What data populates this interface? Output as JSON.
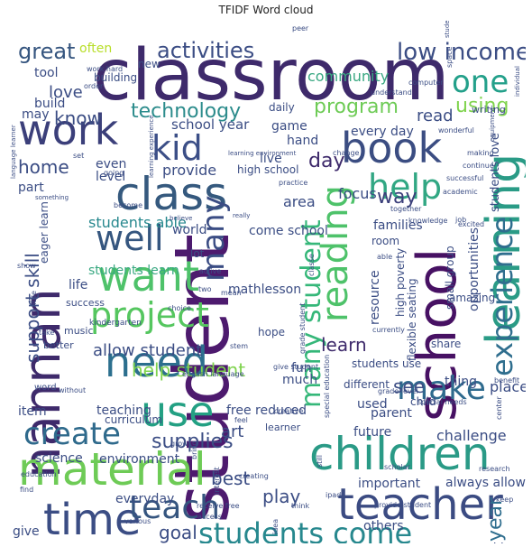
{
  "title": "TFIDF Word cloud",
  "words": [
    {
      "text": "classroom",
      "color": "#3e2a6b"
    },
    {
      "text": "student",
      "color": "#4d1a6e"
    },
    {
      "text": "school",
      "color": "#471163"
    },
    {
      "text": "learning",
      "color": "#2a9b86"
    },
    {
      "text": "work",
      "color": "#3b3f7a"
    },
    {
      "text": "nannan",
      "color": "#3e2a6b"
    },
    {
      "text": "class",
      "color": "#35597e"
    },
    {
      "text": "book",
      "color": "#3b4d82"
    },
    {
      "text": "kid",
      "color": "#3c4f87"
    },
    {
      "text": "want",
      "color": "#4ec26a"
    },
    {
      "text": "well",
      "color": "#35567f"
    },
    {
      "text": "project",
      "color": "#55c65f"
    },
    {
      "text": "need",
      "color": "#2c6f8e"
    },
    {
      "text": "use",
      "color": "#23a083"
    },
    {
      "text": "material",
      "color": "#6ecb56"
    },
    {
      "text": "time",
      "color": "#3b4d84"
    },
    {
      "text": "teach",
      "color": "#35557f"
    },
    {
      "text": "teacher",
      "color": "#3b4b82"
    },
    {
      "text": "children",
      "color": "#2a9a86"
    },
    {
      "text": "experience",
      "color": "#2f6e8e"
    },
    {
      "text": "students come",
      "color": "#27888e"
    },
    {
      "text": "create",
      "color": "#2f6a8c"
    },
    {
      "text": "make",
      "color": "#2f6b8e"
    },
    {
      "text": "many",
      "color": "#3b4d84"
    },
    {
      "text": "reading",
      "color": "#4ec26a"
    },
    {
      "text": "many student",
      "color": "#35b779"
    },
    {
      "text": "help",
      "color": "#31a783"
    },
    {
      "text": "one",
      "color": "#23a08a"
    },
    {
      "text": "activities",
      "color": "#3b4d84"
    },
    {
      "text": "low income",
      "color": "#3b4d84"
    },
    {
      "text": "great",
      "color": "#35557f"
    },
    {
      "text": "technology",
      "color": "#2c8c8c"
    },
    {
      "text": "using",
      "color": "#7ed34c"
    },
    {
      "text": "program",
      "color": "#6ecb56"
    },
    {
      "text": "day",
      "color": "#3e2a6b"
    },
    {
      "text": "way",
      "color": "#3b3f7a"
    },
    {
      "text": "help student",
      "color": "#7fd34e"
    },
    {
      "text": "supplies",
      "color": "#3b4d84"
    },
    {
      "text": "students need",
      "color": "#b8de29"
    },
    {
      "text": "learn",
      "color": "#3e2a6b"
    },
    {
      "text": "year",
      "color": "#2f6e8e"
    },
    {
      "text": "goal",
      "color": "#3b4d84"
    },
    {
      "text": "see",
      "color": "#3b4d84"
    },
    {
      "text": "best",
      "color": "#3b4d84"
    },
    {
      "text": "art",
      "color": "#3b4d84"
    },
    {
      "text": "play",
      "color": "#3b4d84"
    },
    {
      "text": "support skill",
      "color": "#3b4d84"
    },
    {
      "text": "allow student",
      "color": "#3b4d84"
    },
    {
      "text": "students able",
      "color": "#27888e"
    },
    {
      "text": "students learn",
      "color": "#3aa882"
    },
    {
      "text": "home",
      "color": "#3b4d84"
    },
    {
      "text": "know",
      "color": "#3b4d84"
    },
    {
      "text": "love",
      "color": "#3b4d84"
    },
    {
      "text": "community",
      "color": "#3aa882"
    },
    {
      "text": "school year",
      "color": "#3b4d84"
    },
    {
      "text": "every day",
      "color": "#3b4d84"
    },
    {
      "text": "provide",
      "color": "#3b4d84"
    },
    {
      "text": "read",
      "color": "#3b4d84"
    },
    {
      "text": "focus",
      "color": "#3b4d84"
    },
    {
      "text": "area",
      "color": "#3b4d84"
    },
    {
      "text": "families",
      "color": "#3b4d84"
    },
    {
      "text": "come school",
      "color": "#3b4d84"
    },
    {
      "text": "world",
      "color": "#3b4d84"
    },
    {
      "text": "resource",
      "color": "#3b4d84"
    },
    {
      "text": "often",
      "color": "#b8de29"
    },
    {
      "text": "tool",
      "color": "#3b4d84"
    },
    {
      "text": "build",
      "color": "#3b4d84"
    },
    {
      "text": "may",
      "color": "#3b4d84"
    },
    {
      "text": "even",
      "color": "#3b4d84"
    },
    {
      "text": "level",
      "color": "#3b4d84"
    },
    {
      "text": "part",
      "color": "#3b4d84"
    },
    {
      "text": "life",
      "color": "#3b4d84"
    },
    {
      "text": "mathlesson",
      "color": "#3b4d84"
    },
    {
      "text": "lot",
      "color": "#3b4d84"
    },
    {
      "text": "hand",
      "color": "#3b4d84"
    },
    {
      "text": "live",
      "color": "#3b4d84"
    },
    {
      "text": "game",
      "color": "#3b4d84"
    },
    {
      "text": "high school",
      "color": "#3b4d84"
    },
    {
      "text": "fun",
      "color": "#3b4d84"
    },
    {
      "text": "much",
      "color": "#3b4d84"
    },
    {
      "text": "thing",
      "color": "#3b4d84"
    },
    {
      "text": "used",
      "color": "#3b4d84"
    },
    {
      "text": "place",
      "color": "#3b4d84"
    },
    {
      "text": "parent",
      "color": "#3b4d84"
    },
    {
      "text": "future",
      "color": "#3b4d84"
    },
    {
      "text": "challenge",
      "color": "#3b4d84"
    },
    {
      "text": "always allow",
      "color": "#3b4d84"
    },
    {
      "text": "teaching",
      "color": "#3b4d84"
    },
    {
      "text": "item",
      "color": "#3b4d84"
    },
    {
      "text": "environment",
      "color": "#3b4d84"
    },
    {
      "text": "free reduced",
      "color": "#3b4d84"
    },
    {
      "text": "science",
      "color": "#3b4d84"
    },
    {
      "text": "everyday",
      "color": "#3b4d84"
    },
    {
      "text": "give",
      "color": "#3b4d84"
    },
    {
      "text": "others",
      "color": "#3b4d84"
    },
    {
      "text": "working",
      "color": "#3b4d84"
    },
    {
      "text": "important",
      "color": "#3b4d84"
    },
    {
      "text": "word",
      "color": "#3b4d84"
    },
    {
      "text": "curriculum",
      "color": "#3b4d84"
    },
    {
      "text": "new",
      "color": "#3b4d84"
    },
    {
      "text": "building",
      "color": "#3b4d84"
    },
    {
      "text": "daily",
      "color": "#3b4d84"
    },
    {
      "text": "eager learn",
      "color": "#3b4d84"
    },
    {
      "text": "room",
      "color": "#3b4d84"
    },
    {
      "text": "success",
      "color": "#3b4d84"
    },
    {
      "text": "music",
      "color": "#3b4d84"
    },
    {
      "text": "hope",
      "color": "#3b4d84"
    },
    {
      "text": "share",
      "color": "#3b4d84"
    },
    {
      "text": "students use",
      "color": "#3b4d84"
    },
    {
      "text": "opportunities",
      "color": "#3b4d84"
    },
    {
      "text": "students love",
      "color": "#3b4d84"
    },
    {
      "text": "small group",
      "color": "#3b4d84"
    },
    {
      "text": "high poverty",
      "color": "#3b4d84"
    },
    {
      "text": "flexible seating",
      "color": "#3b4d84"
    },
    {
      "text": "amazing",
      "color": "#3b4d84"
    },
    {
      "text": "learner",
      "color": "#3b4d84"
    },
    {
      "text": "better",
      "color": "#3b4d84"
    },
    {
      "text": "kindergarten",
      "color": "#3b4d84"
    },
    {
      "text": "different",
      "color": "#3b4d84"
    },
    {
      "text": "child",
      "color": "#3b4d84"
    },
    {
      "text": "writing",
      "color": "#3b4d84"
    },
    {
      "text": "peer",
      "color": "#3b4d84"
    },
    {
      "text": "students receive",
      "color": "#3b4d84"
    },
    {
      "text": "computer",
      "color": "#3b4d84"
    },
    {
      "text": "understand",
      "color": "#3b4d84"
    },
    {
      "text": "order",
      "color": "#3b4d84"
    },
    {
      "text": "work hard",
      "color": "#3b4d84"
    },
    {
      "text": "language learner",
      "color": "#3b4d84"
    },
    {
      "text": "learning environment",
      "color": "#3b4d84"
    },
    {
      "text": "learning experience",
      "color": "#3b4d84"
    },
    {
      "text": "set",
      "color": "#3b4d84"
    },
    {
      "text": "going",
      "color": "#3b4d84"
    },
    {
      "text": "something",
      "color": "#3b4d84"
    },
    {
      "text": "become",
      "color": "#3b4d84"
    },
    {
      "text": "believe",
      "color": "#3b4d84"
    },
    {
      "text": "really",
      "color": "#3b4d84"
    },
    {
      "text": "wonderful",
      "color": "#3b4d84"
    },
    {
      "text": "making",
      "color": "#3b4d84"
    },
    {
      "text": "continue",
      "color": "#3b4d84"
    },
    {
      "text": "successful",
      "color": "#3b4d84"
    },
    {
      "text": "together",
      "color": "#3b4d84"
    },
    {
      "text": "academic",
      "color": "#3b4d84"
    },
    {
      "text": "reduced lunch",
      "color": "#3b4d84"
    },
    {
      "text": "knowledge",
      "color": "#3b4d84"
    },
    {
      "text": "job",
      "color": "#3b4d84"
    },
    {
      "text": "excited",
      "color": "#3b4d84"
    },
    {
      "text": "able",
      "color": "#3b4d84"
    },
    {
      "text": "space",
      "color": "#3b4d84"
    },
    {
      "text": "individual",
      "color": "#3b4d84"
    },
    {
      "text": "equipment",
      "color": "#3b4d84"
    },
    {
      "text": "change",
      "color": "#3b4d84"
    },
    {
      "text": "practice",
      "color": "#3b4d84"
    },
    {
      "text": "stem",
      "color": "#3b4d84"
    },
    {
      "text": "english language",
      "color": "#3b4d84"
    },
    {
      "text": "give student",
      "color": "#3b4d84"
    },
    {
      "text": "grade student",
      "color": "#3b4d84"
    },
    {
      "text": "classe",
      "color": "#3b4d84"
    },
    {
      "text": "currently",
      "color": "#3b4d84"
    },
    {
      "text": "grade level",
      "color": "#3b4d84"
    },
    {
      "text": "special needs",
      "color": "#3b4d84"
    },
    {
      "text": "benefit",
      "color": "#3b4d84"
    },
    {
      "text": "center",
      "color": "#3b4d84"
    },
    {
      "text": "creative",
      "color": "#3b4d84"
    },
    {
      "text": "feel",
      "color": "#3b4d84"
    },
    {
      "text": "special education",
      "color": "#3b4d84"
    },
    {
      "text": "research",
      "color": "#3b4d84"
    },
    {
      "text": "scholar",
      "color": "#3b4d84"
    },
    {
      "text": "keep",
      "color": "#3b4d84"
    },
    {
      "text": "bring",
      "color": "#3b4d84"
    },
    {
      "text": "creating",
      "color": "#3b4d84"
    },
    {
      "text": "interest",
      "color": "#3b4d84"
    },
    {
      "text": "still",
      "color": "#3b4d84"
    },
    {
      "text": "ipad",
      "color": "#3b4d84"
    },
    {
      "text": "idea",
      "color": "#3b4d84"
    },
    {
      "text": "think",
      "color": "#3b4d84"
    },
    {
      "text": "provide student",
      "color": "#3b4d84"
    },
    {
      "text": "receive free",
      "color": "#3b4d84"
    },
    {
      "text": "access",
      "color": "#3b4d84"
    },
    {
      "text": "various",
      "color": "#3b4d84"
    },
    {
      "text": "find",
      "color": "#3b4d84"
    },
    {
      "text": "education",
      "color": "#3b4d84"
    },
    {
      "text": "take",
      "color": "#3b4d84"
    },
    {
      "text": "choice",
      "color": "#3b4d84"
    },
    {
      "text": "mean",
      "color": "#3b4d84"
    },
    {
      "text": "two",
      "color": "#3b4d84"
    },
    {
      "text": "active",
      "color": "#3b4d84"
    },
    {
      "text": "little",
      "color": "#3b4d84"
    },
    {
      "text": "without",
      "color": "#3b4d84"
    },
    {
      "text": "show",
      "color": "#3b4d84"
    },
    {
      "text": "grow",
      "color": "#3b4d84"
    }
  ]
}
